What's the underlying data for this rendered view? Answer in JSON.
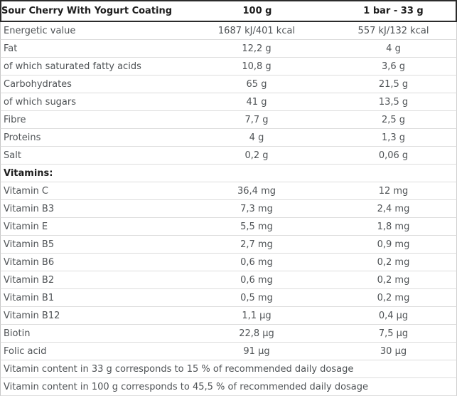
{
  "table": {
    "header": {
      "product": "Sour Cherry With Yogurt Coating",
      "per_100g": "100 g",
      "per_bar": "1 bar - 33 g"
    },
    "nutrients": [
      {
        "label": "Energetic value",
        "per_100g": "1687 kJ/401 kcal",
        "per_bar": "557 kJ/132 kcal"
      },
      {
        "label": "Fat",
        "per_100g": "12,2 g",
        "per_bar": "4 g"
      },
      {
        "label": "of which saturated fatty acids",
        "per_100g": "10,8 g",
        "per_bar": "3,6 g"
      },
      {
        "label": "Carbohydrates",
        "per_100g": "65 g",
        "per_bar": "21,5 g"
      },
      {
        "label": "of which sugars",
        "per_100g": "41 g",
        "per_bar": "13,5 g"
      },
      {
        "label": "Fibre",
        "per_100g": "7,7 g",
        "per_bar": "2,5 g"
      },
      {
        "label": "Proteins",
        "per_100g": "4 g",
        "per_bar": "1,3 g"
      },
      {
        "label": "Salt",
        "per_100g": "0,2 g",
        "per_bar": "0,06 g"
      }
    ],
    "vitamins_section_label": "Vitamins:",
    "vitamins": [
      {
        "label": "Vitamin C",
        "per_100g": "36,4 mg",
        "per_bar": "12 mg"
      },
      {
        "label": "Vitamin B3",
        "per_100g": "7,3 mg",
        "per_bar": "2,4 mg"
      },
      {
        "label": "Vitamin E",
        "per_100g": "5,5 mg",
        "per_bar": "1,8 mg"
      },
      {
        "label": "Vitamin B5",
        "per_100g": "2,7 mg",
        "per_bar": "0,9 mg"
      },
      {
        "label": "Vitamin B6",
        "per_100g": "0,6 mg",
        "per_bar": "0,2 mg"
      },
      {
        "label": "Vitamin B2",
        "per_100g": "0,6 mg",
        "per_bar": "0,2 mg"
      },
      {
        "label": "Vitamin B1",
        "per_100g": "0,5 mg",
        "per_bar": "0,2 mg"
      },
      {
        "label": "Vitamin B12",
        "per_100g": "1,1 µg",
        "per_bar": "0,4 µg"
      },
      {
        "label": "Biotin",
        "per_100g": "22,8 µg",
        "per_bar": "7,5 µg"
      },
      {
        "label": "Folic acid",
        "per_100g": "91 µg",
        "per_bar": "30 µg"
      }
    ],
    "notes": [
      "Vitamin content in 33 g corresponds to 15 % of recommended daily dosage",
      "Vitamin content in 100 g corresponds to 45,5 % of recommended daily dosage"
    ],
    "colors": {
      "header_border": "#2b2b2b",
      "row_divider": "#dddddd",
      "outer_border": "#c6c6c6",
      "body_text": "#4f5356",
      "header_text": "#1d1d1d"
    }
  }
}
